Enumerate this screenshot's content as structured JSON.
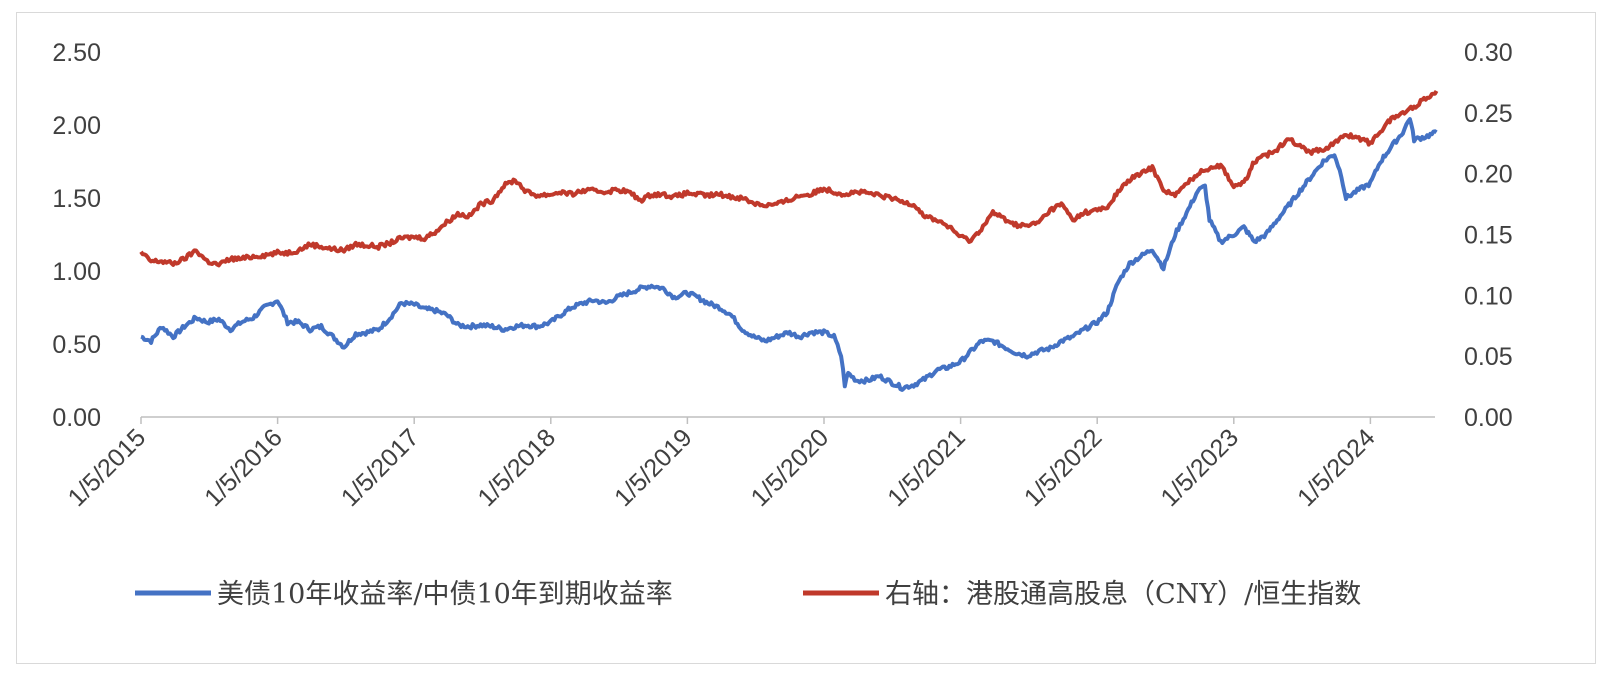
{
  "chart_data": {
    "type": "line",
    "title": "",
    "xlabel": "",
    "ylabel": "",
    "x_tick_labels": [
      "1/5/2015",
      "1/5/2016",
      "1/5/2017",
      "1/5/2018",
      "1/5/2019",
      "1/5/2020",
      "1/5/2021",
      "1/5/2022",
      "1/5/2023",
      "1/5/2024"
    ],
    "y_left": {
      "lim": [
        0,
        2.5
      ],
      "ticks": [
        "0.00",
        "0.50",
        "1.00",
        "1.50",
        "2.00",
        "2.50"
      ]
    },
    "y_right": {
      "lim": [
        0,
        0.3
      ],
      "ticks": [
        "0.00",
        "0.05",
        "0.10",
        "0.15",
        "0.20",
        "0.25",
        "0.30"
      ]
    },
    "legend_position": "bottom",
    "grid": false,
    "series": [
      {
        "name": "美债10年收益率/中债10年到期收益率",
        "axis": "left",
        "color": "#4472C4",
        "x": [
          "2015-01-05",
          "2015-02-01",
          "2015-03-01",
          "2015-04-01",
          "2015-05-01",
          "2015-06-01",
          "2015-07-01",
          "2015-08-01",
          "2015-09-01",
          "2015-10-01",
          "2015-11-01",
          "2015-12-01",
          "2016-01-05",
          "2016-02-01",
          "2016-03-01",
          "2016-04-01",
          "2016-05-01",
          "2016-06-01",
          "2016-07-01",
          "2016-08-01",
          "2016-09-01",
          "2016-10-01",
          "2016-11-01",
          "2016-12-01",
          "2017-01-05",
          "2017-02-01",
          "2017-03-01",
          "2017-04-01",
          "2017-05-01",
          "2017-06-01",
          "2017-07-01",
          "2017-08-01",
          "2017-09-01",
          "2017-10-01",
          "2017-11-01",
          "2017-12-01",
          "2018-01-05",
          "2018-02-01",
          "2018-03-01",
          "2018-04-01",
          "2018-05-01",
          "2018-06-01",
          "2018-07-01",
          "2018-08-01",
          "2018-09-01",
          "2018-10-01",
          "2018-11-01",
          "2018-12-01",
          "2019-01-05",
          "2019-02-01",
          "2019-03-01",
          "2019-04-01",
          "2019-05-01",
          "2019-06-01",
          "2019-07-01",
          "2019-08-01",
          "2019-09-01",
          "2019-10-01",
          "2019-11-01",
          "2019-12-01",
          "2020-01-05",
          "2020-02-01",
          "2020-02-20",
          "2020-03-01",
          "2020-03-10",
          "2020-04-01",
          "2020-05-01",
          "2020-06-01",
          "2020-07-01",
          "2020-08-01",
          "2020-09-01",
          "2020-10-01",
          "2020-11-01",
          "2020-12-01",
          "2021-01-05",
          "2021-02-01",
          "2021-03-01",
          "2021-04-01",
          "2021-05-01",
          "2021-06-01",
          "2021-07-01",
          "2021-08-01",
          "2021-09-01",
          "2021-10-01",
          "2021-11-01",
          "2021-12-01",
          "2022-01-05",
          "2022-02-01",
          "2022-03-01",
          "2022-04-01",
          "2022-05-01",
          "2022-06-01",
          "2022-07-01",
          "2022-08-01",
          "2022-09-01",
          "2022-10-01",
          "2022-10-20",
          "2022-11-01",
          "2022-12-01",
          "2023-01-05",
          "2023-02-01",
          "2023-03-01",
          "2023-04-01",
          "2023-05-01",
          "2023-06-01",
          "2023-07-01",
          "2023-08-01",
          "2023-09-01",
          "2023-10-01",
          "2023-10-20",
          "2023-11-01",
          "2023-12-01",
          "2024-01-05",
          "2024-02-01",
          "2024-03-01",
          "2024-04-01",
          "2024-04-20",
          "2024-05-01",
          "2024-06-01",
          "2024-06-30"
        ],
        "y": [
          0.55,
          0.52,
          0.62,
          0.55,
          0.62,
          0.68,
          0.65,
          0.67,
          0.6,
          0.65,
          0.68,
          0.75,
          0.8,
          0.65,
          0.65,
          0.6,
          0.62,
          0.55,
          0.48,
          0.57,
          0.58,
          0.6,
          0.68,
          0.78,
          0.77,
          0.74,
          0.73,
          0.7,
          0.63,
          0.62,
          0.63,
          0.62,
          0.6,
          0.62,
          0.63,
          0.62,
          0.65,
          0.7,
          0.75,
          0.78,
          0.8,
          0.78,
          0.82,
          0.85,
          0.88,
          0.9,
          0.88,
          0.82,
          0.85,
          0.82,
          0.78,
          0.75,
          0.7,
          0.6,
          0.55,
          0.52,
          0.55,
          0.58,
          0.55,
          0.58,
          0.58,
          0.55,
          0.42,
          0.22,
          0.3,
          0.25,
          0.25,
          0.28,
          0.24,
          0.2,
          0.22,
          0.26,
          0.32,
          0.34,
          0.38,
          0.45,
          0.52,
          0.52,
          0.48,
          0.44,
          0.42,
          0.45,
          0.47,
          0.52,
          0.55,
          0.6,
          0.65,
          0.72,
          0.92,
          1.05,
          1.1,
          1.15,
          1.02,
          1.25,
          1.4,
          1.55,
          1.58,
          1.35,
          1.2,
          1.25,
          1.3,
          1.2,
          1.25,
          1.35,
          1.45,
          1.55,
          1.65,
          1.75,
          1.8,
          1.65,
          1.5,
          1.55,
          1.6,
          1.75,
          1.85,
          1.95,
          2.05,
          1.9,
          1.92,
          1.95
        ]
      },
      {
        "name": "右轴：港股通高股息（CNY）/恒生指数",
        "axis": "right",
        "color": "#C0392B",
        "x": [
          "2015-01-05",
          "2015-02-01",
          "2015-03-01",
          "2015-04-01",
          "2015-05-01",
          "2015-06-01",
          "2015-07-01",
          "2015-08-01",
          "2015-09-01",
          "2015-10-01",
          "2015-11-01",
          "2015-12-01",
          "2016-01-05",
          "2016-02-01",
          "2016-03-01",
          "2016-04-01",
          "2016-05-01",
          "2016-06-01",
          "2016-07-01",
          "2016-08-01",
          "2016-09-01",
          "2016-10-01",
          "2016-11-01",
          "2016-12-01",
          "2017-01-05",
          "2017-02-01",
          "2017-03-01",
          "2017-04-01",
          "2017-05-01",
          "2017-06-01",
          "2017-07-01",
          "2017-08-01",
          "2017-09-01",
          "2017-10-01",
          "2017-11-01",
          "2017-12-01",
          "2018-01-05",
          "2018-02-01",
          "2018-03-01",
          "2018-04-01",
          "2018-05-01",
          "2018-06-01",
          "2018-07-01",
          "2018-08-01",
          "2018-09-01",
          "2018-10-01",
          "2018-11-01",
          "2018-12-01",
          "2019-01-05",
          "2019-02-01",
          "2019-03-01",
          "2019-04-01",
          "2019-05-01",
          "2019-06-01",
          "2019-07-01",
          "2019-08-01",
          "2019-09-01",
          "2019-10-01",
          "2019-11-01",
          "2019-12-01",
          "2020-01-05",
          "2020-02-01",
          "2020-03-01",
          "2020-04-01",
          "2020-05-01",
          "2020-06-01",
          "2020-07-01",
          "2020-08-01",
          "2020-09-01",
          "2020-10-01",
          "2020-11-01",
          "2020-12-01",
          "2021-01-05",
          "2021-02-01",
          "2021-03-01",
          "2021-04-01",
          "2021-05-01",
          "2021-06-01",
          "2021-07-01",
          "2021-08-01",
          "2021-09-01",
          "2021-10-01",
          "2021-11-01",
          "2021-12-01",
          "2022-01-05",
          "2022-02-01",
          "2022-03-01",
          "2022-04-01",
          "2022-05-01",
          "2022-06-01",
          "2022-07-01",
          "2022-08-01",
          "2022-09-01",
          "2022-10-01",
          "2022-11-01",
          "2022-12-01",
          "2023-01-05",
          "2023-02-01",
          "2023-03-01",
          "2023-04-01",
          "2023-05-01",
          "2023-06-01",
          "2023-07-01",
          "2023-08-01",
          "2023-09-01",
          "2023-10-01",
          "2023-11-01",
          "2023-12-01",
          "2024-01-05",
          "2024-02-01",
          "2024-03-01",
          "2024-04-01",
          "2024-05-01",
          "2024-06-01",
          "2024-06-30"
        ],
        "y": [
          0.135,
          0.128,
          0.128,
          0.126,
          0.13,
          0.137,
          0.128,
          0.125,
          0.13,
          0.13,
          0.132,
          0.133,
          0.135,
          0.135,
          0.137,
          0.142,
          0.14,
          0.138,
          0.137,
          0.142,
          0.141,
          0.14,
          0.143,
          0.147,
          0.148,
          0.147,
          0.152,
          0.16,
          0.167,
          0.165,
          0.175,
          0.178,
          0.19,
          0.195,
          0.185,
          0.182,
          0.183,
          0.185,
          0.183,
          0.186,
          0.186,
          0.185,
          0.187,
          0.185,
          0.178,
          0.183,
          0.183,
          0.181,
          0.184,
          0.183,
          0.182,
          0.183,
          0.181,
          0.18,
          0.176,
          0.174,
          0.175,
          0.178,
          0.182,
          0.183,
          0.188,
          0.185,
          0.183,
          0.185,
          0.184,
          0.182,
          0.18,
          0.177,
          0.175,
          0.165,
          0.162,
          0.157,
          0.148,
          0.145,
          0.155,
          0.168,
          0.163,
          0.158,
          0.157,
          0.16,
          0.17,
          0.175,
          0.162,
          0.168,
          0.17,
          0.172,
          0.185,
          0.195,
          0.2,
          0.205,
          0.187,
          0.182,
          0.192,
          0.2,
          0.205,
          0.207,
          0.19,
          0.192,
          0.21,
          0.215,
          0.22,
          0.23,
          0.222,
          0.218,
          0.22,
          0.225,
          0.232,
          0.23,
          0.225,
          0.235,
          0.245,
          0.25,
          0.255,
          0.262,
          0.268
        ]
      }
    ]
  }
}
